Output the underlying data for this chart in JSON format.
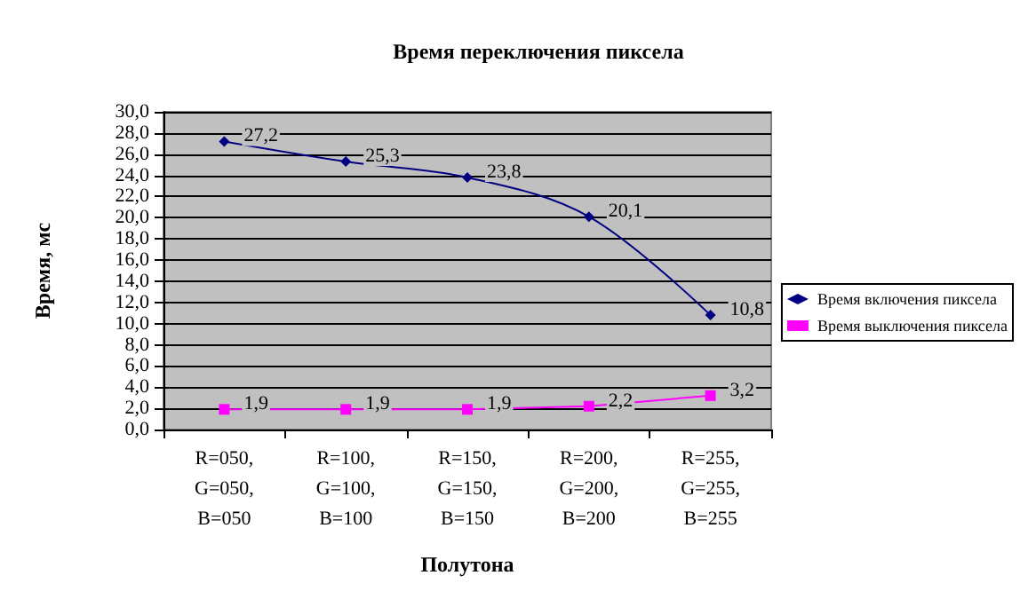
{
  "chart_data": {
    "type": "line",
    "title": "Время переключения пиксела",
    "xlabel": "Полутона",
    "ylabel": "Время, мс",
    "categories": [
      "R=050,\nG=050,\nB=050",
      "R=100,\nG=100,\nB=100",
      "R=150,\nG=150,\nB=150",
      "R=200,\nG=200,\nB=200",
      "R=255,\nG=255,\nB=255"
    ],
    "series": [
      {
        "name": "Время включения пиксела",
        "color": "#000080",
        "marker": "diamond",
        "values": [
          27.2,
          25.3,
          23.8,
          20.1,
          10.8
        ],
        "value_labels": [
          "27,2",
          "25,3",
          "23,8",
          "20,1",
          "10,8"
        ]
      },
      {
        "name": "Время выключения пиксела",
        "color": "#ff00ff",
        "marker": "square",
        "values": [
          1.9,
          1.9,
          1.9,
          2.2,
          3.2
        ],
        "value_labels": [
          "1,9",
          "1,9",
          "1,9",
          "2,2",
          "3,2"
        ]
      }
    ],
    "ylim": [
      0,
      30
    ],
    "yticks": [
      {
        "value": 0,
        "label": "0,0"
      },
      {
        "value": 2,
        "label": "2,0"
      },
      {
        "value": 4,
        "label": "4,0"
      },
      {
        "value": 6,
        "label": "6,0"
      },
      {
        "value": 8,
        "label": "8,0"
      },
      {
        "value": 10,
        "label": "10,0"
      },
      {
        "value": 12,
        "label": "12,0"
      },
      {
        "value": 14,
        "label": "14,0"
      },
      {
        "value": 16,
        "label": "16,0"
      },
      {
        "value": 18,
        "label": "18,0"
      },
      {
        "value": 20,
        "label": "20,0"
      },
      {
        "value": 22,
        "label": "22,0"
      },
      {
        "value": 24,
        "label": "24,0"
      },
      {
        "value": 26,
        "label": "26,0"
      },
      {
        "value": 28,
        "label": "28,0"
      },
      {
        "value": 30,
        "label": "30,0"
      }
    ],
    "grid": "y",
    "legend": "right"
  }
}
